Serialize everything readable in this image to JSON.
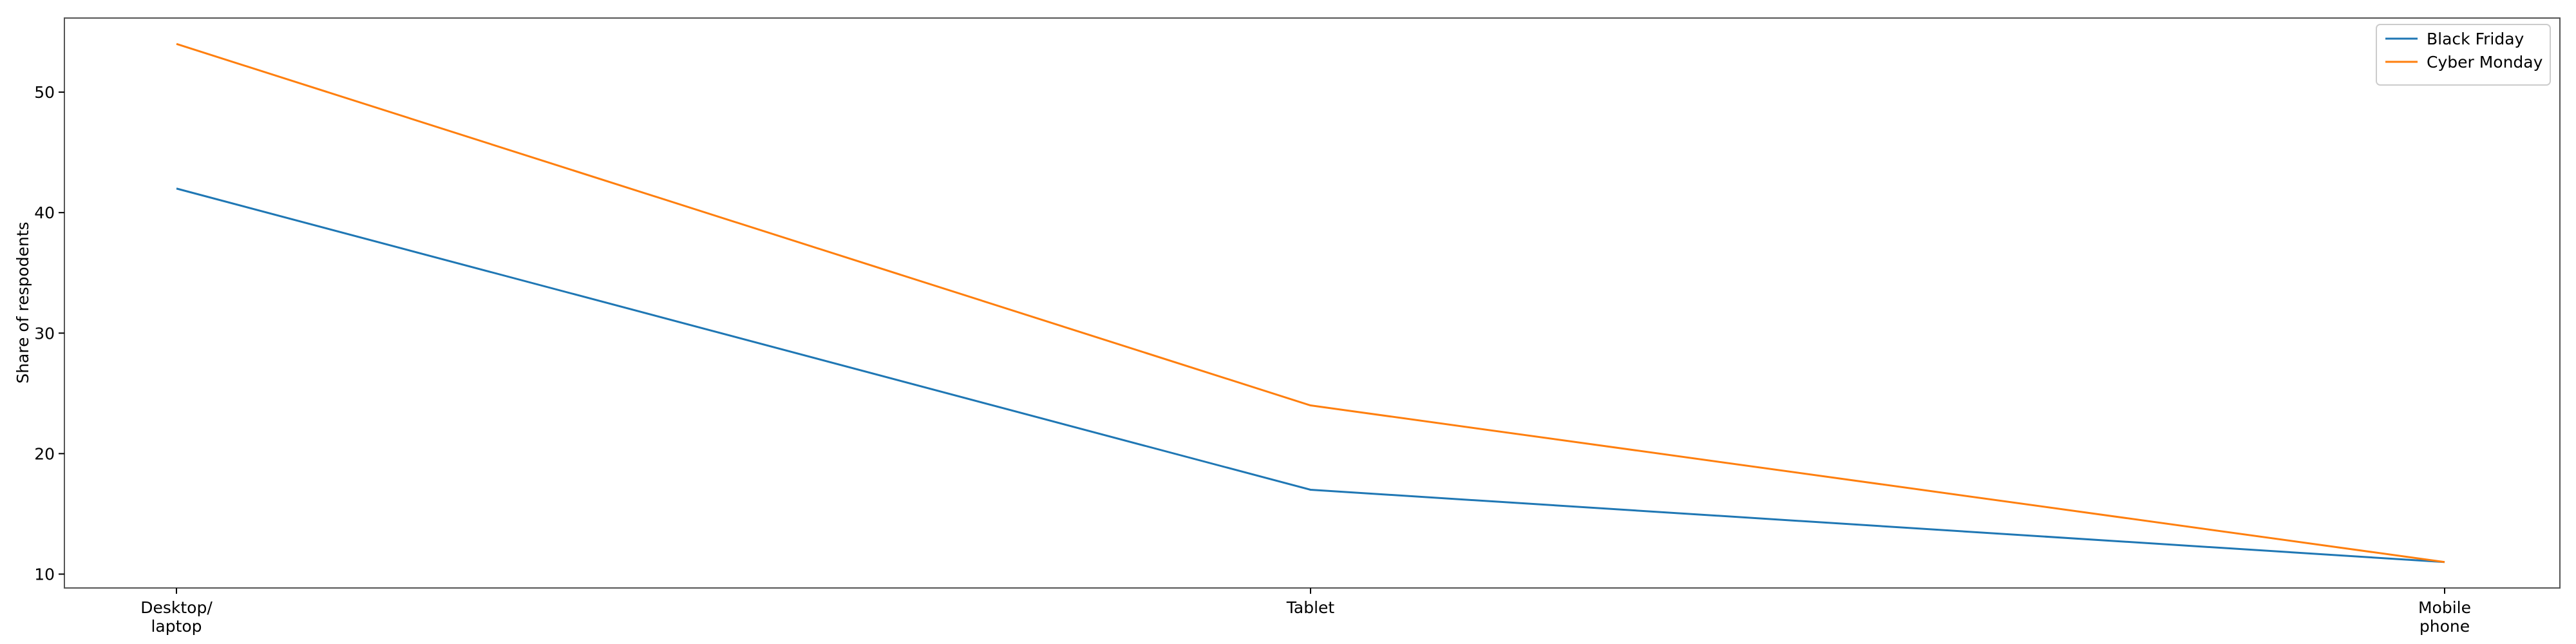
{
  "chart_data": {
    "type": "line",
    "title": "",
    "xlabel": "",
    "ylabel": "Share of respodents",
    "categories": [
      [
        "Desktop/",
        "laptop"
      ],
      [
        "Tablet"
      ],
      [
        "Mobile",
        "phone"
      ]
    ],
    "series": [
      {
        "name": "Black Friday",
        "values": [
          42,
          17,
          11
        ],
        "color": "#1f77b4"
      },
      {
        "name": "Cyber Monday",
        "values": [
          54,
          24,
          11
        ],
        "color": "#ff7f0e"
      }
    ],
    "ylim": [
      8.85,
      56.15
    ],
    "yticks": [
      10,
      20,
      30,
      40,
      50
    ],
    "grid": false,
    "legend": "top-right"
  }
}
